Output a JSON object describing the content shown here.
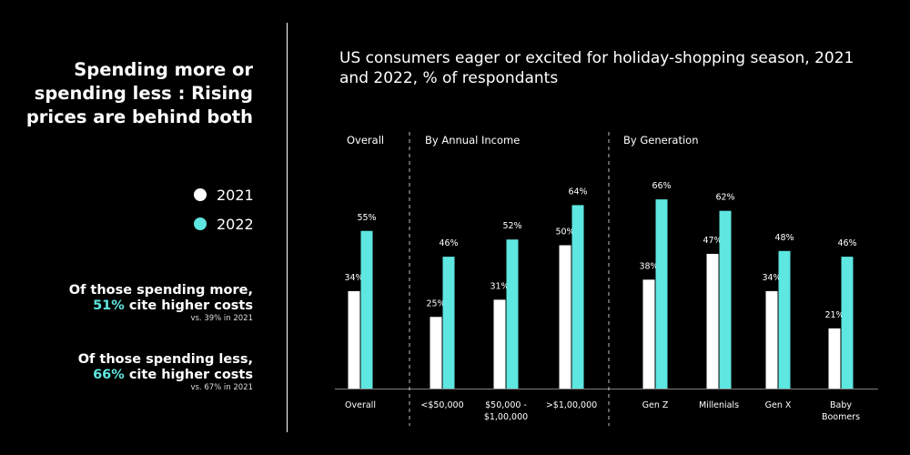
{
  "left_panel": {
    "title": "Spending more or spending less : Rising prices are behind both",
    "legend": [
      {
        "label": "2021",
        "color": "#ffffff"
      },
      {
        "label": "2022",
        "color": "#5ee6e0"
      }
    ],
    "notes": [
      {
        "line1": "Of those spending more,",
        "pct": "51%",
        "rest": " cite higher costs",
        "small": "vs. 39% in 2021"
      },
      {
        "line1": "Of those spending less,",
        "pct": "66%",
        "rest": " cite higher costs",
        "small": "vs. 67% in 2021"
      }
    ]
  },
  "chart_data": {
    "type": "bar",
    "title": "US consumers eager or excited for holiday-shopping season, 2021 and 2022, % of respondants",
    "value_suffix": "%",
    "ylim": [
      0,
      70
    ],
    "series_colors": {
      "2021": "#ffffff",
      "2022": "#5ee6e0"
    },
    "groups": [
      {
        "name": "Overall",
        "categories": [
          {
            "label": [
              "Overall"
            ],
            "v2021": 34,
            "v2022": 55
          }
        ]
      },
      {
        "name": "By Annual Income",
        "categories": [
          {
            "label": [
              "<$50,000"
            ],
            "v2021": 25,
            "v2022": 46
          },
          {
            "label": [
              "$50,000 -",
              "$1,00,000"
            ],
            "v2021": 31,
            "v2022": 52
          },
          {
            "label": [
              ">$1,00,000"
            ],
            "v2021": 50,
            "v2022": 64
          }
        ]
      },
      {
        "name": "By Generation",
        "categories": [
          {
            "label": [
              "Gen Z"
            ],
            "v2021": 38,
            "v2022": 66
          },
          {
            "label": [
              "Millenials"
            ],
            "v2021": 47,
            "v2022": 62
          },
          {
            "label": [
              "Gen X"
            ],
            "v2021": 34,
            "v2022": 48
          },
          {
            "label": [
              "Baby",
              "Boomers"
            ],
            "v2021": 21,
            "v2022": 46
          }
        ]
      }
    ]
  }
}
